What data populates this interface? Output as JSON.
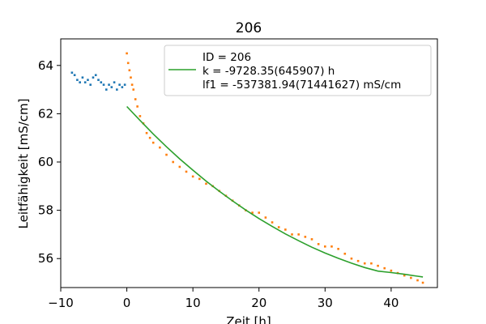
{
  "chart_data": {
    "type": "scatter",
    "title": "206",
    "xlabel": "Zeit [h]",
    "ylabel": "Leitfähigkeit [mS/cm]",
    "xlim": [
      -10,
      47
    ],
    "ylim": [
      54.8,
      65.1
    ],
    "x_ticks": [
      -10,
      0,
      10,
      20,
      30,
      40
    ],
    "y_ticks": [
      56,
      58,
      60,
      62,
      64
    ],
    "x_tick_labels": [
      "−10",
      "0",
      "10",
      "20",
      "30",
      "40"
    ],
    "y_tick_labels": [
      "56",
      "58",
      "60",
      "62",
      "64"
    ],
    "grid": false,
    "legend_position": "top-right",
    "colors": {
      "before": "#1f77b4",
      "after": "#ff7f0e",
      "fit": "#2ca02c"
    },
    "series": [
      {
        "kind": "points",
        "color": "before",
        "x": [
          -8.3,
          -7.9,
          -7.5,
          -7.1,
          -6.7,
          -6.3,
          -5.9,
          -5.5,
          -5.1,
          -4.7,
          -4.3,
          -3.9,
          -3.5,
          -3.1,
          -2.7,
          -2.3,
          -1.9,
          -1.5,
          -1.1,
          -0.7,
          -0.3
        ],
        "y": [
          63.7,
          63.6,
          63.4,
          63.3,
          63.5,
          63.3,
          63.4,
          63.2,
          63.5,
          63.6,
          63.4,
          63.3,
          63.2,
          63.0,
          63.2,
          63.1,
          63.3,
          63.0,
          63.2,
          63.1,
          63.2
        ]
      },
      {
        "kind": "points",
        "color": "after",
        "x": [
          0.0,
          0.2,
          0.4,
          0.6,
          0.8,
          1.0,
          1.3,
          1.6,
          2.0,
          2.5,
          3.0,
          3.5,
          4.0,
          5,
          6,
          7,
          8,
          9,
          10,
          11,
          12,
          13,
          14,
          15,
          16,
          17,
          18,
          19,
          20,
          21,
          22,
          23,
          24,
          25,
          26,
          27,
          28,
          29,
          30,
          31,
          32,
          33,
          34,
          35,
          36,
          37,
          38,
          39,
          40,
          41,
          42,
          43,
          44,
          44.8
        ],
        "y": [
          64.5,
          64.1,
          63.8,
          63.5,
          63.2,
          63.0,
          62.6,
          62.3,
          61.9,
          61.6,
          61.2,
          61.0,
          60.8,
          60.6,
          60.3,
          60.0,
          59.8,
          59.6,
          59.4,
          59.3,
          59.1,
          59.0,
          58.8,
          58.6,
          58.4,
          58.2,
          58.0,
          57.9,
          57.9,
          57.7,
          57.5,
          57.3,
          57.2,
          57.0,
          57.0,
          56.9,
          56.8,
          56.6,
          56.5,
          56.5,
          56.4,
          56.2,
          56.0,
          55.9,
          55.8,
          55.8,
          55.7,
          55.6,
          55.5,
          55.4,
          55.3,
          55.2,
          55.1,
          55.0
        ]
      },
      {
        "kind": "line",
        "color": "fit",
        "x": [
          0,
          2,
          4,
          6,
          8,
          10,
          12,
          14,
          16,
          18,
          20,
          22,
          24,
          26,
          28,
          30,
          32,
          34,
          36,
          38,
          40,
          42,
          44,
          44.8
        ],
        "y": [
          62.3,
          61.72,
          61.16,
          60.63,
          60.13,
          59.66,
          59.21,
          58.79,
          58.39,
          58.01,
          57.66,
          57.33,
          57.02,
          56.74,
          56.47,
          56.23,
          56.01,
          55.81,
          55.63,
          55.48,
          55.42,
          55.35,
          55.27,
          55.24
        ]
      }
    ],
    "legend": {
      "lines": [
        "ID = 206",
        "k = -9728.35(645907) h",
        "lf1 = -537381.94(71441627) mS/cm"
      ],
      "fit_line_index": 1
    }
  }
}
